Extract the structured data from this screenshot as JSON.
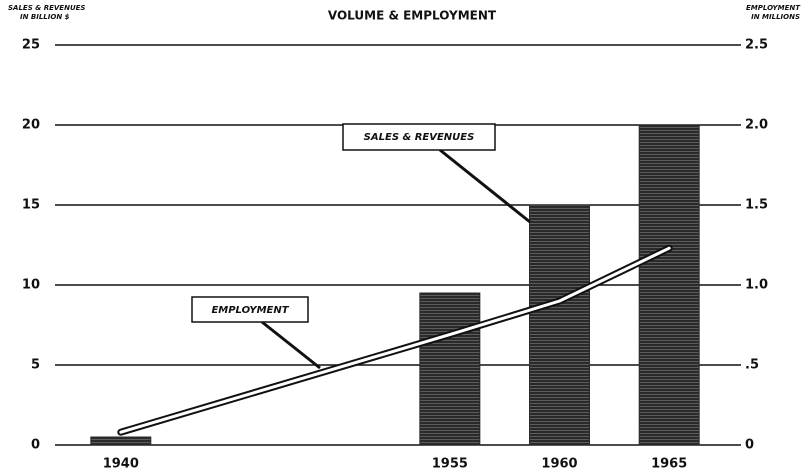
{
  "chart_data": {
    "type": "bar",
    "title": "VOLUME & EMPLOYMENT",
    "y_label": [
      "SALES & REVENUES",
      "IN BILLION $"
    ],
    "y2_label": [
      "EMPLOYMENT",
      "IN MILLIONS"
    ],
    "x": [
      1940,
      1955,
      1960,
      1965
    ],
    "xlim": [
      1937,
      1968
    ],
    "xticks": [
      1940,
      1955,
      1960,
      1965
    ],
    "series": [
      {
        "name": "SALES & REVENUES",
        "type": "bar",
        "color": "#2a2a2a",
        "values": [
          0.5,
          9.5,
          15,
          20
        ]
      },
      {
        "name": "EMPLOYMENT",
        "type": "line",
        "axis": "y2",
        "color": "#ffffff",
        "values": [
          0.08,
          0.69,
          0.9,
          1.23
        ]
      }
    ],
    "ylim": [
      0,
      25
    ],
    "yticks": [
      0,
      5,
      10,
      15,
      20,
      25
    ],
    "y2lim": [
      0,
      2.5
    ],
    "y2ticks": [
      0,
      {
        "value": 0.5,
        "label": ".5"
      },
      {
        "value": 1.0,
        "label": "1.0"
      },
      {
        "value": 1.5,
        "label": "1.5"
      },
      {
        "value": 2.0,
        "label": "2.0"
      },
      {
        "value": 2.5,
        "label": "2.5"
      }
    ],
    "grid": true
  }
}
